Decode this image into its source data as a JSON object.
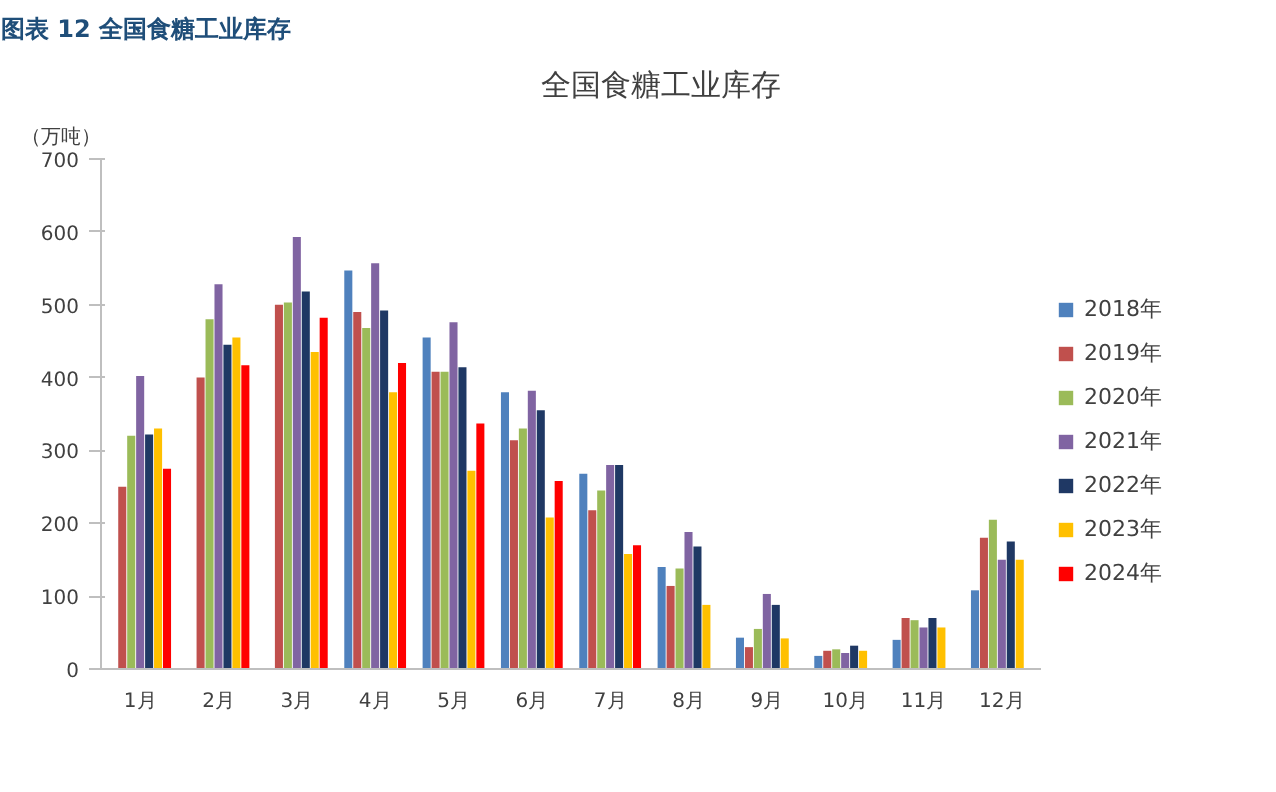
{
  "chart_data": {
    "type": "bar",
    "title": "全国食糖工业库存",
    "ylabel": "（万吨）",
    "annotations": [
      "图表 12  全国食糖工业库存"
    ],
    "categories": [
      "1月",
      "2月",
      "3月",
      "4月",
      "5月",
      "6月",
      "7月",
      "8月",
      "9月",
      "10月",
      "11月",
      "12月"
    ],
    "series": [
      {
        "name": "2018年",
        "color": "#4f81bd",
        "values": [
          null,
          null,
          null,
          547,
          455,
          380,
          268,
          140,
          43,
          18,
          40,
          108
        ]
      },
      {
        "name": "2019年",
        "color": "#c0504d",
        "values": [
          250,
          400,
          500,
          490,
          408,
          314,
          218,
          114,
          30,
          25,
          70,
          180
        ]
      },
      {
        "name": "2020年",
        "color": "#9bbb59",
        "values": [
          320,
          480,
          503,
          468,
          408,
          330,
          245,
          138,
          55,
          27,
          67,
          205
        ]
      },
      {
        "name": "2021年",
        "color": "#8064a2",
        "values": [
          402,
          528,
          593,
          557,
          476,
          382,
          280,
          188,
          103,
          22,
          57,
          150
        ]
      },
      {
        "name": "2022年",
        "color": "#1f3864",
        "values": [
          322,
          445,
          518,
          492,
          414,
          355,
          280,
          168,
          88,
          32,
          70,
          175
        ]
      },
      {
        "name": "2023年",
        "color": "#ffc000",
        "values": [
          330,
          455,
          435,
          380,
          272,
          208,
          158,
          88,
          42,
          25,
          57,
          150
        ]
      },
      {
        "name": "2024年",
        "color": "#ff0000",
        "values": [
          275,
          417,
          482,
          420,
          337,
          258,
          170,
          null,
          null,
          null,
          null,
          null
        ]
      }
    ],
    "ylim": [
      0,
      700
    ],
    "yticks": [
      0,
      100,
      200,
      300,
      400,
      500,
      600,
      700
    ],
    "grid": false,
    "legend": "right"
  }
}
